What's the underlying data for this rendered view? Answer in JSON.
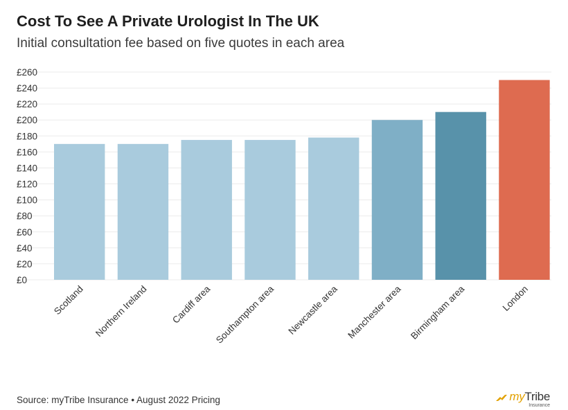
{
  "chart_data": {
    "type": "bar",
    "title": "Cost To See A Private Urologist In The UK",
    "subtitle": "Initial consultation fee based on five quotes in each area",
    "xlabel": "",
    "ylabel": "",
    "ylim": [
      0,
      260
    ],
    "yticks": [
      0,
      20,
      40,
      60,
      80,
      100,
      120,
      140,
      160,
      180,
      200,
      220,
      240,
      260
    ],
    "ytick_prefix": "£",
    "grid": true,
    "categories": [
      "Scotland",
      "Northern Ireland",
      "Cardiff area",
      "Southampton area",
      "Newcastle area",
      "Manchester area",
      "Birmingham area",
      "London"
    ],
    "values": [
      170,
      170,
      175,
      175,
      178,
      200,
      210,
      250
    ],
    "colors": [
      "#a9cbdd",
      "#a9cbdd",
      "#a9cbdd",
      "#a9cbdd",
      "#a9cbdd",
      "#7fafc6",
      "#5892aa",
      "#de6b50"
    ]
  },
  "footer": {
    "source": "Source: myTribe Insurance • August 2022 Pricing",
    "logo_my": "my",
    "logo_tribe": "Tribe",
    "logo_sub": "Insurance"
  },
  "colors": {
    "grid": "#ebebeb",
    "logo_accent": "#e2a100"
  }
}
